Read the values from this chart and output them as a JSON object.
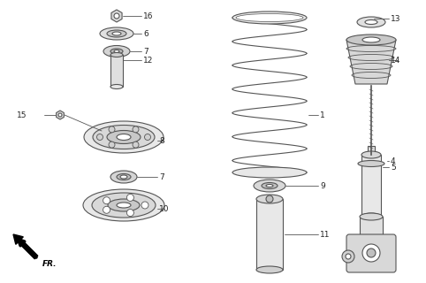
{
  "bg_color": "#ffffff",
  "line_color": "#555555",
  "fig_width": 4.82,
  "fig_height": 3.2,
  "dpi": 100
}
